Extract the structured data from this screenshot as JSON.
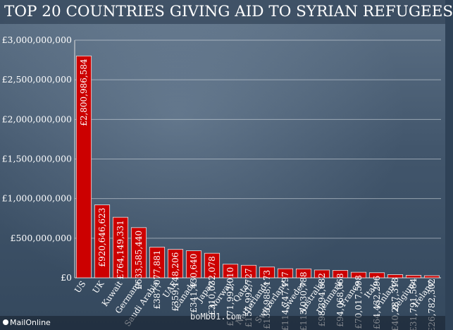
{
  "title": "TOP 20 COUNTRIES GIVING AID TO SYRIAN REFUGEES",
  "source": "MailOnline",
  "watermark": "boMb01.com",
  "colors": {
    "bar": "#cc0000",
    "bar_edge": "#e8e8e8",
    "text": "#ffffff",
    "axis": "#dddddd"
  },
  "chart_data": {
    "type": "bar",
    "title": "TOP 20 COUNTRIES GIVING AID TO SYRIAN REFUGEES",
    "xlabel": "",
    "ylabel": "",
    "ylim": [
      0,
      3000000000
    ],
    "yticks": [
      0,
      500000000,
      1000000000,
      1500000000,
      2000000000,
      2500000000,
      3000000000
    ],
    "ytick_labels": [
      "£0",
      "£500,000,000",
      "£1,000,000,000",
      "£1,500,000,000",
      "£2,000,000,000",
      "£2,500,000,000",
      "£3,000,000,000"
    ],
    "grid": true,
    "categories": [
      "US",
      "UK",
      "Kuwait",
      "Germany",
      "Saudi Arabia",
      "UAE",
      "Canada",
      "Japan",
      "Norway",
      "Qatar",
      "Netherlands",
      "Switzerland",
      "Sweden",
      "Australia",
      "Denmark",
      "France",
      "Italy",
      "Finland",
      "Belgium",
      "Ireland"
    ],
    "values": [
      2800986584,
      920646623,
      764149331,
      633585440,
      387077881,
      359148206,
      341430640,
      310032078,
      171992010,
      157992727,
      135988173,
      114747197,
      113030788,
      98394682,
      94068068,
      70017598,
      64432296,
      40287318,
      31791564,
      26782302
    ],
    "value_labels": [
      "£2,800,986,584",
      "£920,646,623",
      "£764,149,331",
      "£633,585,440",
      "£387,077,881",
      "£359,148,206",
      "£341,430,640",
      "£310,032,078",
      "£171,992,010",
      "£157,992,727",
      "£135,988,173",
      "£114,747,197",
      "£113,030,788",
      "£98,394,682",
      "£94,068,068",
      "£70,017,598",
      "£64,432,296",
      "£40,287,318",
      "£31,791,564",
      "£26,782,302"
    ]
  }
}
